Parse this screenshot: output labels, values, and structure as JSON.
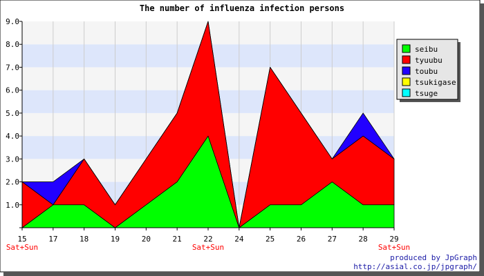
{
  "chart_data": {
    "type": "area",
    "stacked": true,
    "title": "The number of influenza infection persons",
    "x": [
      "15",
      "17",
      "18",
      "19",
      "20",
      "21",
      "22",
      "24",
      "25",
      "26",
      "27",
      "28",
      "29"
    ],
    "weekend_marks": [
      {
        "x": "15",
        "label": "Sat+Sun"
      },
      {
        "x": "22",
        "label": "Sat+Sun"
      },
      {
        "x": "29",
        "label": "Sat+Sun"
      }
    ],
    "ylim": [
      0,
      9
    ],
    "yticks": [
      "1.0",
      "2.0",
      "3.0",
      "4.0",
      "5.0",
      "6.0",
      "7.0",
      "8.0",
      "9.0"
    ],
    "series": [
      {
        "name": "seibu",
        "color": "#00ff00",
        "values": [
          0,
          1,
          1,
          0,
          1,
          2,
          4,
          0,
          1,
          1,
          2,
          1,
          1
        ]
      },
      {
        "name": "tyuubu",
        "color": "#ff0000",
        "values": [
          2,
          0,
          2,
          1,
          2,
          3,
          5,
          0,
          6,
          4,
          1,
          3,
          2
        ]
      },
      {
        "name": "toubu",
        "color": "#2200ff",
        "values": [
          0,
          1,
          0,
          0,
          0,
          0,
          0,
          0,
          0,
          0,
          0,
          1,
          0
        ]
      },
      {
        "name": "tsukigase",
        "color": "#ffff00",
        "values": [
          0,
          0,
          0,
          0,
          0,
          0,
          0,
          0,
          0,
          0,
          0,
          0,
          0
        ]
      },
      {
        "name": "tsuge",
        "color": "#00ffff",
        "values": [
          0,
          0,
          0,
          0,
          0,
          0,
          0,
          0,
          0,
          0,
          0,
          0,
          0
        ]
      }
    ],
    "grid": true,
    "band_colors": [
      "#f5f5f5",
      "#dde6fb"
    ],
    "legend_position": "right"
  },
  "footer": {
    "line1": "produced by JpGraph",
    "line2": "http://asial.co.jp/jpgraph/"
  }
}
